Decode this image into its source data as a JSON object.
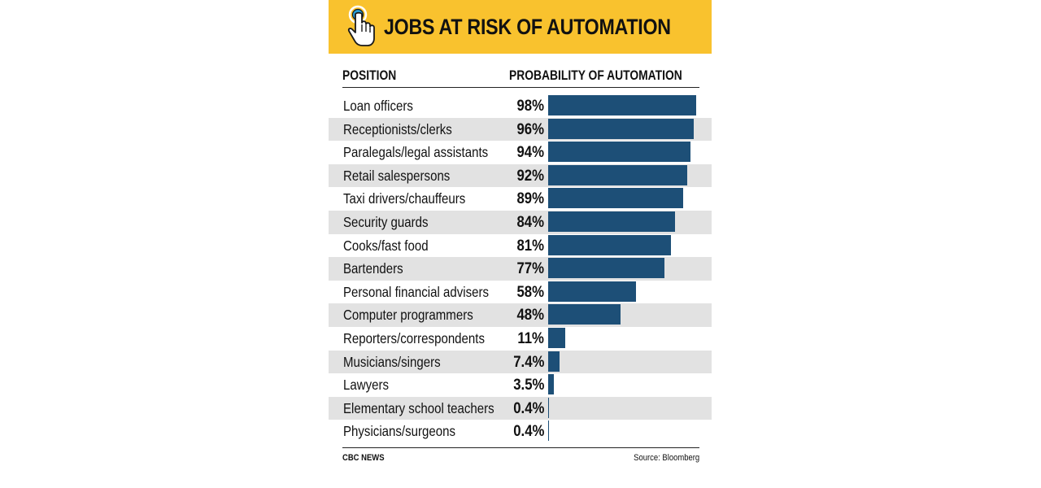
{
  "chart_data": {
    "type": "bar",
    "orientation": "horizontal",
    "title": "JOBS AT RISK OF AUTOMATION",
    "column_headers": {
      "category": "POSITION",
      "value": "PROBABILITY OF AUTOMATION"
    },
    "categories": [
      "Loan officers",
      "Receptionists/clerks",
      "Paralegals/legal assistants",
      "Retail salespersons",
      "Taxi drivers/chauffeurs",
      "Security guards",
      "Cooks/fast food",
      "Bartenders",
      "Personal financial advisers",
      "Computer programmers",
      "Reporters/correspondents",
      "Musicians/singers",
      "Lawyers",
      "Elementary school teachers",
      "Physicians/surgeons"
    ],
    "values": [
      98,
      96,
      94,
      92,
      89,
      84,
      81,
      77,
      58,
      48,
      11,
      7.4,
      3.5,
      0.4,
      0.4
    ],
    "value_labels": [
      "98%",
      "96%",
      "94%",
      "92%",
      "89%",
      "84%",
      "81%",
      "77%",
      "58%",
      "48%",
      "11%",
      "7.4%",
      "3.5%",
      "0.4%",
      "0.4%"
    ],
    "unit": "%",
    "xlim": [
      0,
      100
    ],
    "bar_color": "#1d4f77"
  },
  "footer": {
    "credit": "CBC NEWS",
    "source": "Source: Bloomberg"
  },
  "colors": {
    "banner": "#f9c22e",
    "bar": "#1d4f77",
    "row_shade": "#e2e2e2",
    "icon_ring": "#2a9fd6"
  },
  "icons": {
    "banner": "pointing-hand-touch-icon"
  }
}
